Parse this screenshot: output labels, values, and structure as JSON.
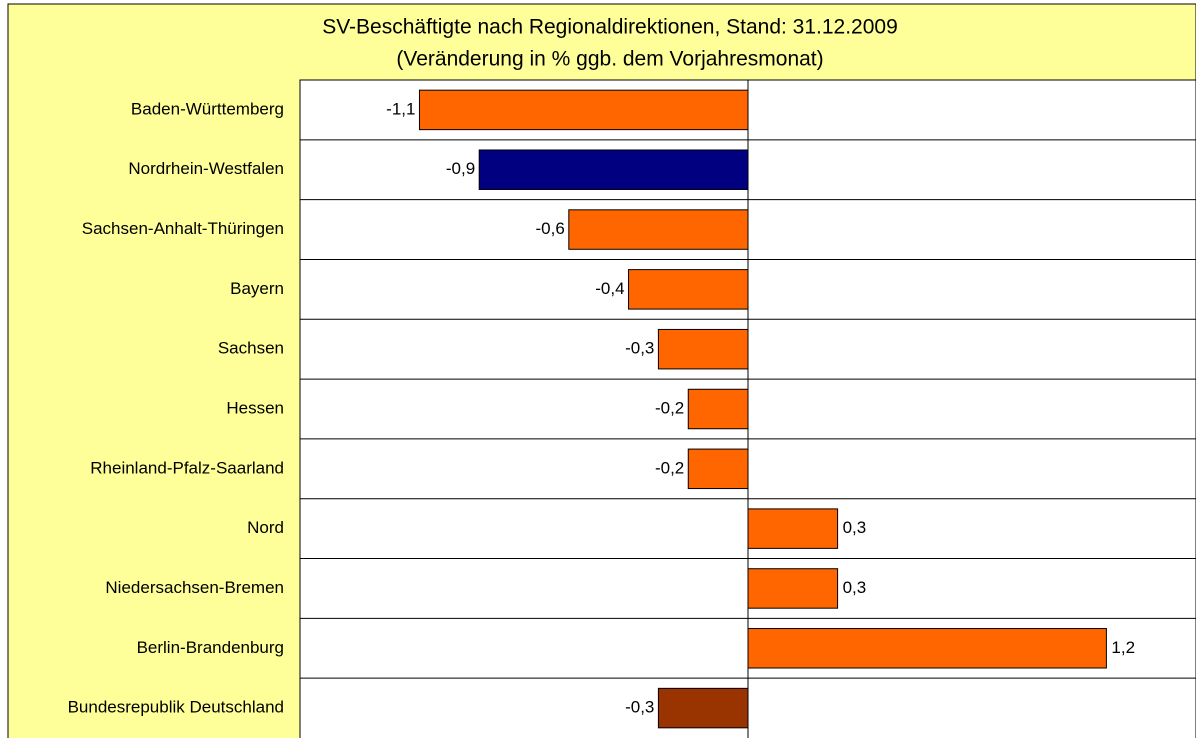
{
  "chart_data": {
    "type": "barh",
    "title": "SV-Beschäftigte nach Regionaldirektionen, Stand: 31.12.2009",
    "subtitle": "(Veränderung in % ggb. dem Vorjahresmonat)",
    "categories": [
      "Baden-Württemberg",
      "Nordrhein-Westfalen",
      "Sachsen-Anhalt-Thüringen",
      "Bayern",
      "Sachsen",
      "Hessen",
      "Rheinland-Pfalz-Saarland",
      "Nord",
      "Niedersachsen-Bremen",
      "Berlin-Brandenburg",
      "Bundesrepublik Deutschland"
    ],
    "values": [
      -1.1,
      -0.9,
      -0.6,
      -0.4,
      -0.3,
      -0.2,
      -0.2,
      0.3,
      0.3,
      1.2,
      -0.3
    ],
    "value_labels": [
      "-1,1",
      "-0,9",
      "-0,6",
      "-0,4",
      "-0,3",
      "-0,2",
      "-0,2",
      "0,3",
      "0,3",
      "1,2",
      "-0,3"
    ],
    "colors": [
      "#ff6600",
      "#000080",
      "#ff6600",
      "#ff6600",
      "#ff6600",
      "#ff6600",
      "#ff6600",
      "#ff6600",
      "#ff6600",
      "#ff6600",
      "#993300"
    ],
    "xlim": [
      -1.5,
      1.5
    ]
  }
}
